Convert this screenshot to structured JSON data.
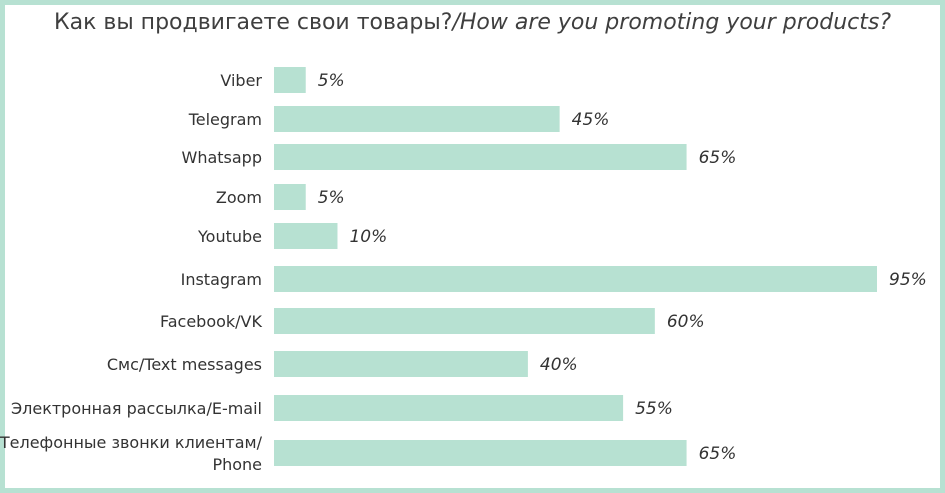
{
  "chart_data": {
    "type": "bar",
    "orientation": "horizontal",
    "title_ru": "Как вы продвигаете свои товары?",
    "title_en": "/How are you promoting your products?",
    "categories": [
      "Viber",
      "Telegram",
      "Whatsapp",
      "Zoom",
      "Youtube",
      "Instagram",
      "Facebook/VK",
      "Смс/Text messages",
      "Электронная рассылка/E-mail",
      [
        "Телефонные звонки клиентам/",
        "Phone"
      ]
    ],
    "values": [
      5,
      45,
      65,
      5,
      10,
      95,
      60,
      40,
      55,
      65
    ],
    "value_labels": [
      "5%",
      "45%",
      "65%",
      "5%",
      "10%",
      "95%",
      "60%",
      "40%",
      "55%",
      "65%"
    ],
    "xlim": [
      0,
      95
    ],
    "grid": false,
    "colors": {
      "bar": "#b7e1d2",
      "border": "#b7e1d2",
      "text": "#333333"
    }
  }
}
